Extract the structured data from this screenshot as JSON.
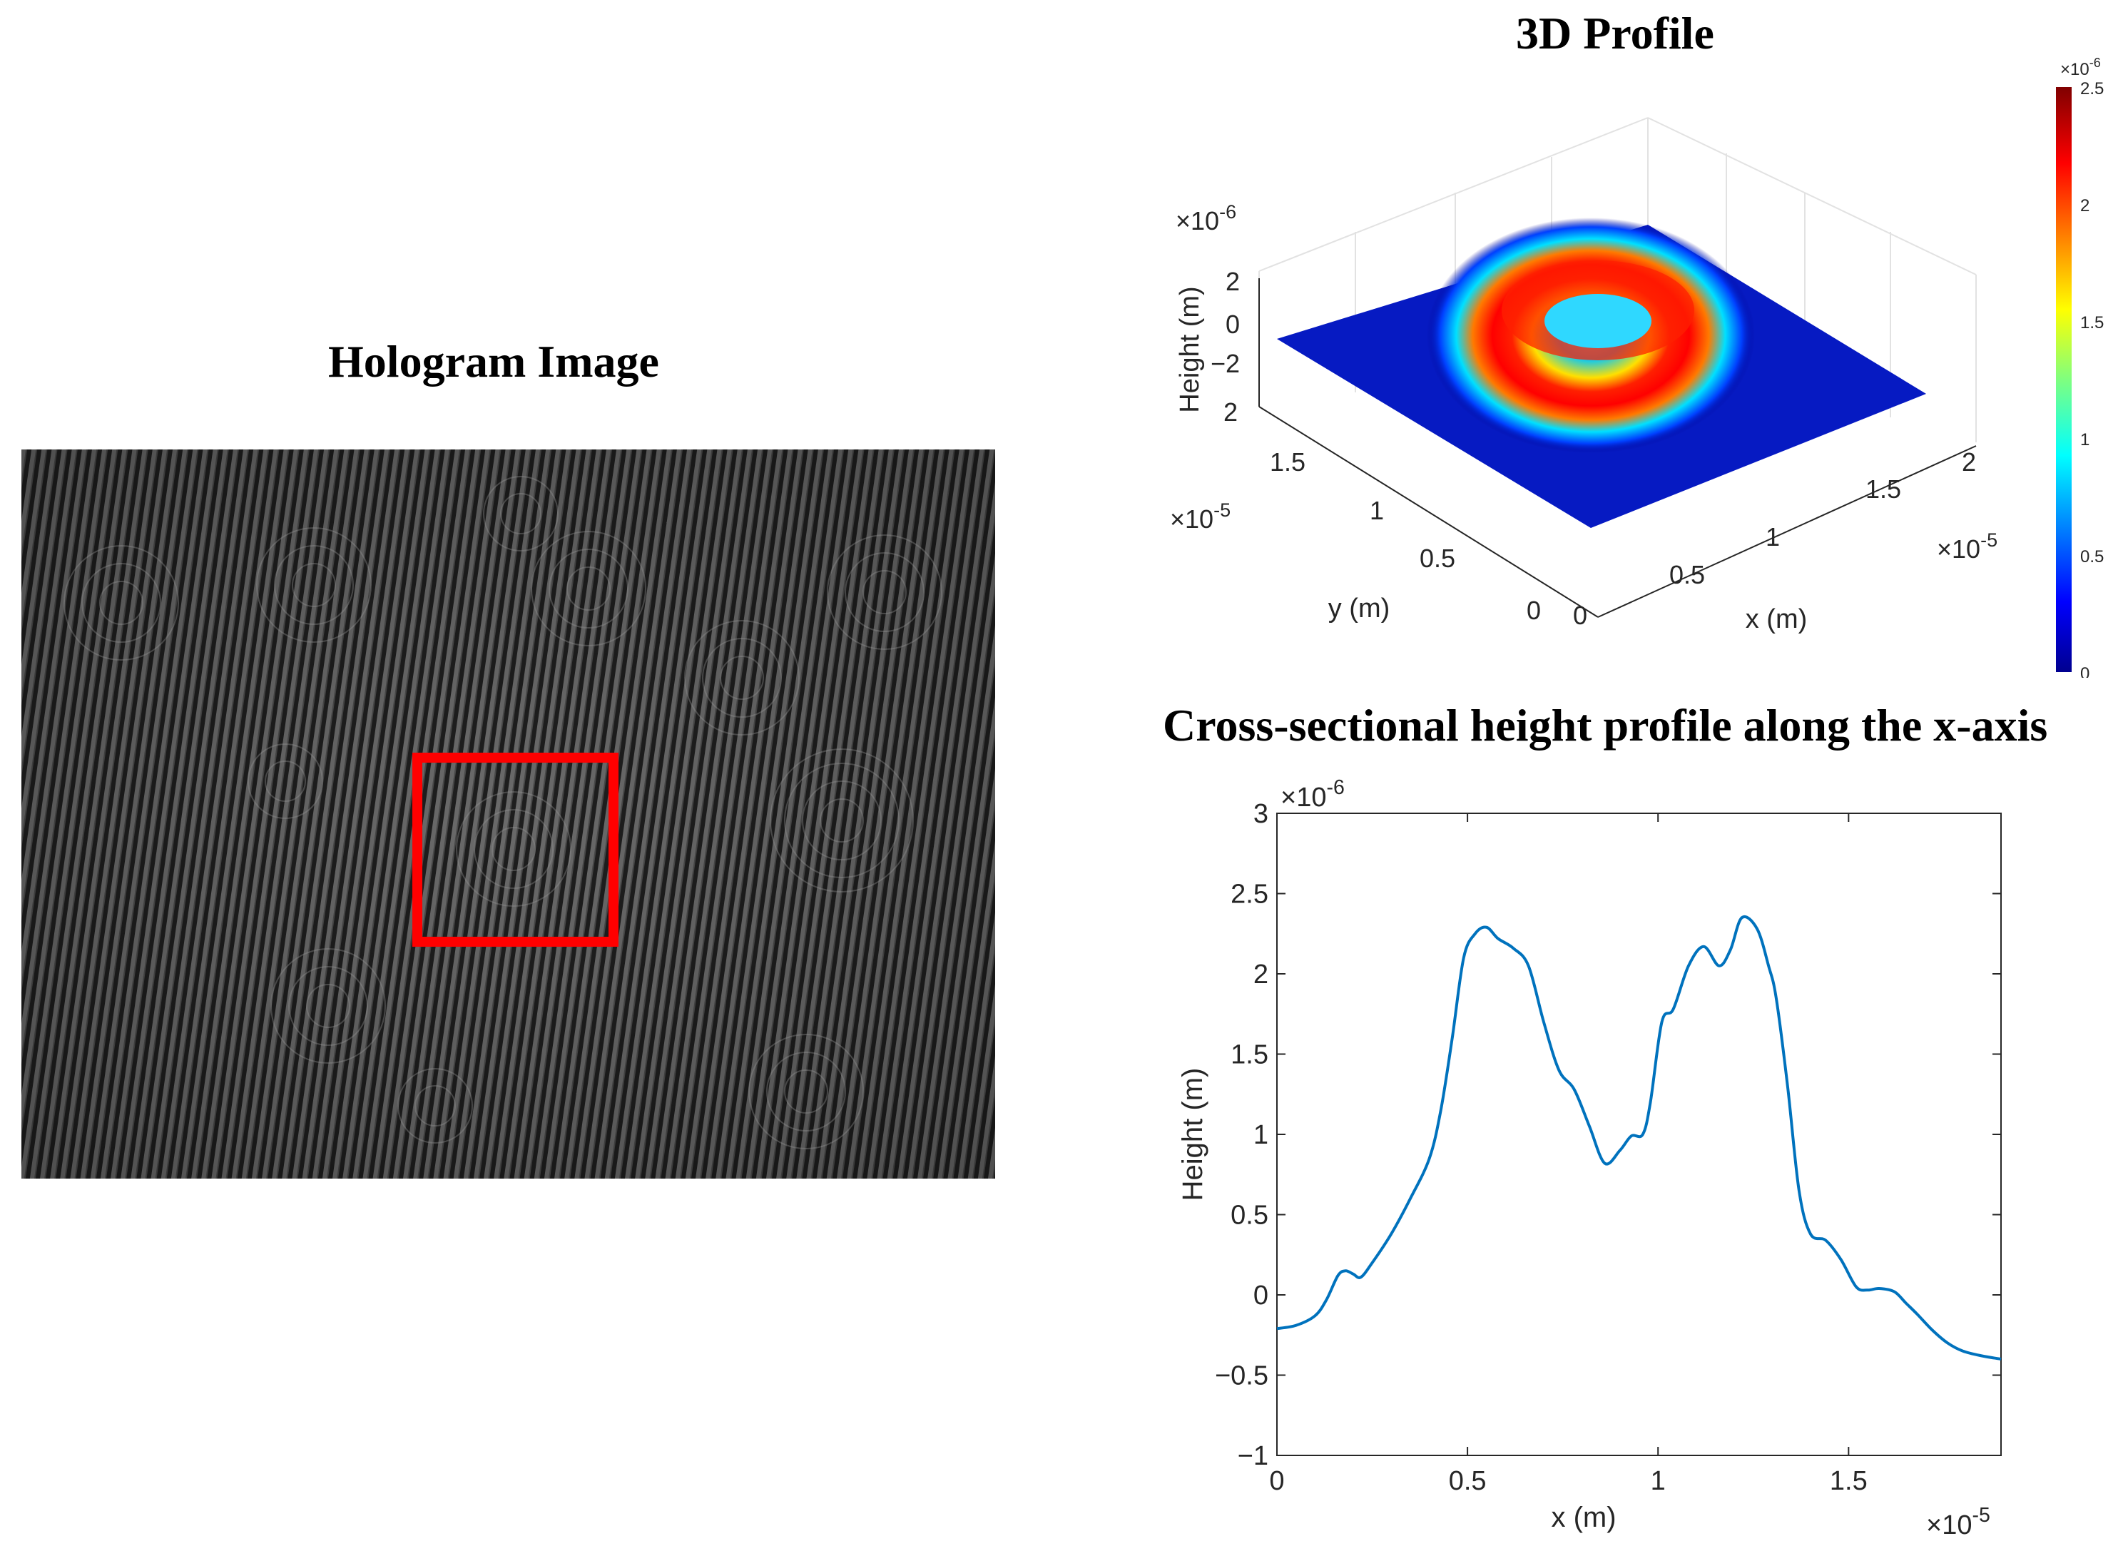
{
  "hologram": {
    "title": "Hologram Image",
    "roi_color": "#ff0000"
  },
  "profile3d": {
    "title": "3D Profile",
    "zlabel": "Height (m)",
    "xlabel": "x (m)",
    "ylabel": "y (m)",
    "z_exp": "×10",
    "z_exp_power": "-6",
    "x_exp": "×10",
    "x_exp_power": "-5",
    "y_exp": "×10",
    "y_exp_power": "-5",
    "z_ticks": [
      "2",
      "0",
      "−2"
    ],
    "y_ticks": [
      "2",
      "1.5",
      "1",
      "0.5",
      "0"
    ],
    "x_ticks": [
      "0",
      "0.5",
      "1",
      "1.5",
      "2"
    ],
    "colorbar_ticks": [
      "2.5",
      "2",
      "1.5",
      "1",
      "0.5",
      "0"
    ],
    "colorbar_exp": "×10",
    "colorbar_exp_power": "-6",
    "colormap": "jet"
  },
  "chart_data": {
    "type": "line",
    "title": "Cross-sectional height profile along the x-axis",
    "xlabel": "x (m)",
    "ylabel": "Height (m)",
    "x_exp_label": "×10",
    "x_exp_power": "-5",
    "y_exp_label": "×10",
    "y_exp_power": "-6",
    "xlim": [
      0,
      1.9
    ],
    "ylim": [
      -1,
      3
    ],
    "x_ticks": [
      0,
      0.5,
      1,
      1.5
    ],
    "x_tick_labels": [
      "0",
      "0.5",
      "1",
      "1.5"
    ],
    "y_ticks": [
      -1,
      -0.5,
      0,
      0.5,
      1,
      1.5,
      2,
      2.5,
      3
    ],
    "y_tick_labels": [
      "−1",
      "−0.5",
      "0",
      "0.5",
      "1",
      "1.5",
      "2",
      "2.5",
      "3"
    ],
    "grid": false,
    "line_color": "#0072bd",
    "series": [
      {
        "x": [
          0,
          0.05,
          0.1,
          0.13,
          0.16,
          0.18,
          0.2,
          0.22,
          0.25,
          0.3,
          0.35,
          0.4,
          0.43,
          0.46,
          0.49,
          0.52,
          0.55,
          0.58,
          0.62,
          0.66,
          0.7,
          0.74,
          0.78,
          0.82,
          0.86,
          0.9,
          0.93,
          0.96,
          0.98,
          1.01,
          1.04,
          1.08,
          1.12,
          1.16,
          1.19,
          1.22,
          1.26,
          1.29,
          1.31,
          1.34,
          1.37,
          1.4,
          1.44,
          1.48,
          1.52,
          1.55,
          1.58,
          1.62,
          1.65,
          1.68,
          1.72,
          1.76,
          1.8,
          1.85,
          1.9
        ],
        "y": [
          -0.21,
          -0.19,
          -0.13,
          -0.03,
          0.12,
          0.15,
          0.13,
          0.11,
          0.2,
          0.38,
          0.6,
          0.85,
          1.15,
          1.6,
          2.1,
          2.25,
          2.29,
          2.22,
          2.16,
          2.05,
          1.7,
          1.4,
          1.28,
          1.05,
          0.82,
          0.9,
          0.99,
          1.0,
          1.2,
          1.7,
          1.78,
          2.05,
          2.17,
          2.05,
          2.15,
          2.35,
          2.28,
          2.05,
          1.85,
          1.3,
          0.65,
          0.38,
          0.34,
          0.22,
          0.05,
          0.03,
          0.04,
          0.02,
          -0.05,
          -0.12,
          -0.22,
          -0.3,
          -0.35,
          -0.38,
          -0.4
        ]
      }
    ]
  }
}
